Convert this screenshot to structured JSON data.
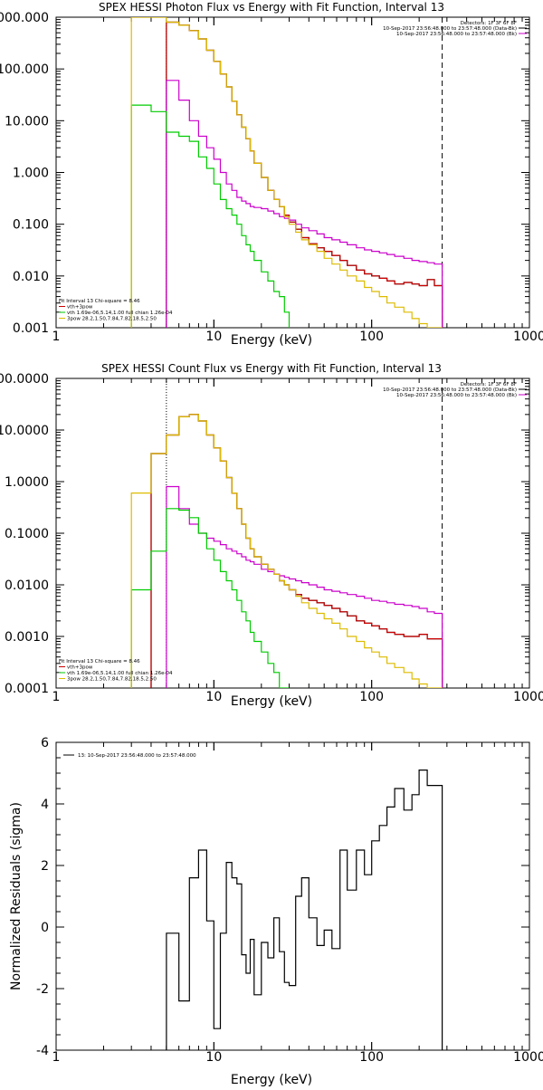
{
  "chart_data": [
    {
      "type": "line",
      "title": "SPEX HESSI Photon Flux vs Energy with Fit Function, Interval 13",
      "xlabel": "Energy (keV)",
      "ylabel": "",
      "xscale": "log",
      "yscale": "log",
      "xlim": [
        1,
        1000
      ],
      "ylim": [
        0.001,
        1000
      ],
      "x_ticks": [
        "1",
        "10",
        "100",
        "1000"
      ],
      "y_ticks": [
        "0.001",
        "0.010",
        "0.100",
        "1.000",
        "10.000",
        "100.000",
        "1000.000"
      ],
      "legend_top_right": [
        {
          "text": "Detectors: 1F 3F 6F 8F",
          "color": "#000000"
        },
        {
          "text": "10-Sep-2017 23:56:48.000 to 23:57:48.000 (Data-Bk)",
          "color": "#000000"
        },
        {
          "text": "10-Sep-2017 23:56:48.000 to 23:57:48.000 (Bk)",
          "color": "#cc00cc"
        }
      ],
      "legend_bottom_left": [
        {
          "text": "Fit Interval 13   Chi-square = 8.46",
          "color": "#000000"
        },
        {
          "text": "vth+3pow",
          "color": "#cc0000"
        },
        {
          "text": "vth 1.69e-06,5.14,1.00   full chian 1.26e-04",
          "color": "#00cc00"
        },
        {
          "text": "3pow 28.2,1.50,7.84,7.82,18.5,2.50",
          "color": "#ddbb00"
        }
      ],
      "vlines": [
        {
          "x": 5,
          "style": "dotted"
        },
        {
          "x": 280,
          "style": "dashed"
        }
      ],
      "series": [
        {
          "name": "10-Sep-2017 23:56:48.000 to 23:57:48.000 (Data-Bk)",
          "color": "#000000",
          "x": [
            5,
            6,
            7,
            8,
            9,
            10,
            11,
            12,
            13,
            14,
            15,
            16,
            17,
            18,
            20,
            22,
            24,
            26,
            28,
            30,
            33,
            36,
            40,
            45,
            50,
            56,
            63,
            70,
            80,
            90,
            100,
            112,
            125,
            140,
            160,
            180,
            200,
            225,
            250,
            280
          ],
          "y": [
            800,
            700,
            550,
            380,
            230,
            140,
            80,
            45,
            24,
            13,
            7.5,
            4.5,
            2.6,
            1.5,
            0.8,
            0.45,
            0.3,
            0.22,
            0.15,
            0.11,
            0.08,
            0.055,
            0.042,
            0.035,
            0.03,
            0.025,
            0.02,
            0.016,
            0.013,
            0.011,
            0.01,
            0.009,
            0.008,
            0.007,
            0.0075,
            0.007,
            0.0065,
            0.0085,
            0.0065,
            0.005
          ]
        },
        {
          "name": "vth+3pow",
          "color": "#cc0000",
          "x": [
            5,
            6,
            7,
            8,
            9,
            10,
            11,
            12,
            13,
            14,
            15,
            16,
            17,
            18,
            20,
            22,
            24,
            26,
            28,
            30,
            33,
            36,
            40,
            45,
            50,
            56,
            63,
            70,
            80,
            90,
            100,
            112,
            125,
            140,
            160,
            180,
            200,
            225,
            250,
            280
          ],
          "y": [
            800,
            700,
            550,
            380,
            230,
            140,
            80,
            45,
            24,
            13,
            7.5,
            4.5,
            2.6,
            1.5,
            0.8,
            0.45,
            0.3,
            0.22,
            0.15,
            0.11,
            0.08,
            0.055,
            0.042,
            0.035,
            0.03,
            0.025,
            0.02,
            0.016,
            0.013,
            0.011,
            0.01,
            0.009,
            0.008,
            0.007,
            0.0075,
            0.007,
            0.0065,
            0.0085,
            0.0065,
            0.005
          ]
        },
        {
          "name": "10-Sep-2017 23:56:48.000 to 23:57:48.000 (Bk)",
          "color": "#cc00cc",
          "x": [
            5,
            6,
            7,
            8,
            9,
            10,
            11,
            12,
            13,
            14,
            15,
            16,
            17,
            18,
            20,
            22,
            24,
            26,
            28,
            30,
            33,
            36,
            40,
            45,
            50,
            56,
            63,
            70,
            80,
            90,
            100,
            112,
            125,
            140,
            160,
            180,
            200,
            225,
            250,
            280
          ],
          "y": [
            60,
            25,
            10,
            5,
            3,
            1.8,
            1,
            0.6,
            0.45,
            0.33,
            0.28,
            0.25,
            0.22,
            0.21,
            0.2,
            0.18,
            0.16,
            0.14,
            0.13,
            0.12,
            0.1,
            0.085,
            0.075,
            0.065,
            0.055,
            0.05,
            0.045,
            0.04,
            0.035,
            0.032,
            0.03,
            0.028,
            0.026,
            0.024,
            0.022,
            0.02,
            0.019,
            0.018,
            0.017,
            0.015
          ]
        },
        {
          "name": "vth 1.69e-06,5.14,1.00   full chian 1.26e-04",
          "color": "#00cc00",
          "x": [
            3,
            4,
            5,
            6,
            7,
            8,
            9,
            10,
            11,
            12,
            13,
            14,
            15,
            16,
            17,
            18,
            20,
            22,
            24,
            26,
            28,
            30
          ],
          "y": [
            20,
            15,
            6,
            5,
            4,
            2,
            1.2,
            0.6,
            0.3,
            0.2,
            0.15,
            0.1,
            0.06,
            0.04,
            0.03,
            0.02,
            0.012,
            0.008,
            0.005,
            0.004,
            0.002,
            0.001
          ]
        },
        {
          "name": "3pow 28.2,1.50,7.84,7.82,18.5,2.50",
          "color": "#ddbb00",
          "x": [
            3,
            5,
            6,
            7,
            8,
            9,
            10,
            11,
            12,
            13,
            14,
            15,
            16,
            17,
            18,
            20,
            22,
            24,
            26,
            28,
            30,
            33,
            36,
            40,
            45,
            50,
            56,
            63,
            70,
            80,
            90,
            100,
            112,
            125,
            140,
            160,
            180,
            200,
            225,
            250,
            280
          ],
          "y": [
            1000,
            800,
            700,
            550,
            380,
            230,
            140,
            80,
            45,
            24,
            13,
            7.5,
            4.5,
            2.6,
            1.5,
            0.8,
            0.45,
            0.3,
            0.22,
            0.14,
            0.1,
            0.07,
            0.05,
            0.04,
            0.03,
            0.022,
            0.017,
            0.013,
            0.01,
            0.008,
            0.006,
            0.005,
            0.004,
            0.003,
            0.0025,
            0.002,
            0.0015,
            0.0012,
            0.001,
            0.001,
            0.001
          ]
        }
      ]
    },
    {
      "type": "line",
      "title": "SPEX HESSI Count Flux vs Energy with Fit Function, Interval 13",
      "xlabel": "Energy (keV)",
      "ylabel": "",
      "xscale": "log",
      "yscale": "log",
      "xlim": [
        1,
        1000
      ],
      "ylim": [
        0.0001,
        100
      ],
      "x_ticks": [
        "1",
        "10",
        "100",
        "1000"
      ],
      "y_ticks": [
        "0.0001",
        "0.0010",
        "0.0100",
        "0.1000",
        "1.0000",
        "10.0000",
        "100.0000"
      ],
      "legend_top_right": [
        {
          "text": "Detectors: 1F 3F 6F 8F",
          "color": "#000000"
        },
        {
          "text": "10-Sep-2017 23:56:48.000 to 23:57:48.000 (Data-Bk)",
          "color": "#000000"
        },
        {
          "text": "10-Sep-2017 23:56:48.000 to 23:57:48.000 (Bk)",
          "color": "#cc00cc"
        }
      ],
      "legend_bottom_left": [
        {
          "text": "Fit Interval 13   Chi-square = 8.46",
          "color": "#000000"
        },
        {
          "text": "vth+3pow",
          "color": "#cc0000"
        },
        {
          "text": "vth 1.69e-06,5.14,1.00   full chian 1.26e-04",
          "color": "#00cc00"
        },
        {
          "text": "3pow 28.2,1.50,7.84,7.82,18.5,2.50",
          "color": "#ddbb00"
        }
      ],
      "vlines": [
        {
          "x": 5,
          "style": "dotted"
        },
        {
          "x": 280,
          "style": "dashed"
        }
      ],
      "series": [
        {
          "name": "10-Sep-2017 23:56:48.000 to 23:57:48.000 (Data-Bk)",
          "color": "#000000",
          "x": [
            4,
            5,
            6,
            7,
            8,
            9,
            10,
            11,
            12,
            13,
            14,
            15,
            16,
            17,
            18,
            20,
            22,
            24,
            26,
            28,
            30,
            33,
            36,
            40,
            45,
            50,
            56,
            63,
            70,
            80,
            90,
            100,
            112,
            125,
            140,
            160,
            180,
            200,
            225,
            250,
            280
          ],
          "y": [
            3.5,
            8,
            18,
            20,
            15,
            8,
            4.5,
            2.5,
            1.2,
            0.6,
            0.3,
            0.15,
            0.08,
            0.05,
            0.035,
            0.025,
            0.02,
            0.016,
            0.012,
            0.01,
            0.008,
            0.0065,
            0.0055,
            0.005,
            0.0045,
            0.004,
            0.0035,
            0.003,
            0.0025,
            0.002,
            0.0018,
            0.0016,
            0.0014,
            0.0012,
            0.0011,
            0.001,
            0.001,
            0.0011,
            0.0009,
            0.0009,
            0.0007
          ]
        },
        {
          "name": "vth+3pow",
          "color": "#cc0000",
          "x": [
            4,
            5,
            6,
            7,
            8,
            9,
            10,
            11,
            12,
            13,
            14,
            15,
            16,
            17,
            18,
            20,
            22,
            24,
            26,
            28,
            30,
            33,
            36,
            40,
            45,
            50,
            56,
            63,
            70,
            80,
            90,
            100,
            112,
            125,
            140,
            160,
            180,
            200,
            225,
            250,
            280
          ],
          "y": [
            3.5,
            8,
            18,
            20,
            15,
            8,
            4.5,
            2.5,
            1.2,
            0.6,
            0.3,
            0.15,
            0.08,
            0.05,
            0.035,
            0.025,
            0.02,
            0.016,
            0.012,
            0.01,
            0.008,
            0.0065,
            0.0055,
            0.005,
            0.0045,
            0.004,
            0.0035,
            0.003,
            0.0025,
            0.002,
            0.0018,
            0.0016,
            0.0014,
            0.0012,
            0.0011,
            0.001,
            0.001,
            0.0011,
            0.0009,
            0.0009,
            0.0007
          ]
        },
        {
          "name": "10-Sep-2017 23:56:48.000 to 23:57:48.000 (Bk)",
          "color": "#cc00cc",
          "x": [
            5,
            6,
            7,
            8,
            9,
            10,
            11,
            12,
            13,
            14,
            15,
            16,
            17,
            18,
            20,
            22,
            24,
            26,
            28,
            30,
            33,
            36,
            40,
            45,
            50,
            56,
            63,
            70,
            80,
            90,
            100,
            112,
            125,
            140,
            160,
            180,
            200,
            225,
            250,
            280
          ],
          "y": [
            0.8,
            0.3,
            0.15,
            0.1,
            0.08,
            0.07,
            0.06,
            0.05,
            0.045,
            0.04,
            0.035,
            0.03,
            0.028,
            0.025,
            0.02,
            0.018,
            0.016,
            0.015,
            0.014,
            0.013,
            0.012,
            0.011,
            0.01,
            0.009,
            0.008,
            0.0075,
            0.007,
            0.0065,
            0.006,
            0.0055,
            0.005,
            0.0048,
            0.0045,
            0.0042,
            0.004,
            0.0038,
            0.0035,
            0.003,
            0.0028,
            0.0022
          ]
        },
        {
          "name": "vth 1.69e-06,5.14,1.00   full chian 1.26e-04",
          "color": "#00cc00",
          "x": [
            3,
            4,
            5,
            6,
            7,
            8,
            9,
            10,
            11,
            12,
            13,
            14,
            15,
            16,
            17,
            18,
            20,
            22,
            24,
            26,
            28,
            30
          ],
          "y": [
            0.008,
            0.045,
            0.3,
            0.28,
            0.2,
            0.1,
            0.05,
            0.03,
            0.018,
            0.012,
            0.008,
            0.005,
            0.003,
            0.002,
            0.0012,
            0.0008,
            0.0005,
            0.0003,
            0.0002,
            0.0001,
            0.0001,
            0.0001
          ]
        },
        {
          "name": "3pow 28.2,1.50,7.84,7.82,18.5,2.50",
          "color": "#ddbb00",
          "x": [
            3,
            4,
            5,
            6,
            7,
            8,
            9,
            10,
            11,
            12,
            13,
            14,
            15,
            16,
            17,
            18,
            20,
            22,
            24,
            26,
            28,
            30,
            33,
            36,
            40,
            45,
            50,
            56,
            63,
            70,
            80,
            90,
            100,
            112,
            125,
            140,
            160,
            180,
            200,
            225,
            250,
            280
          ],
          "y": [
            0.6,
            3.5,
            8,
            18,
            20,
            15,
            8,
            4.5,
            2.5,
            1.2,
            0.6,
            0.3,
            0.15,
            0.08,
            0.05,
            0.035,
            0.025,
            0.02,
            0.016,
            0.012,
            0.01,
            0.008,
            0.006,
            0.0045,
            0.0035,
            0.0028,
            0.0022,
            0.0018,
            0.0014,
            0.001,
            0.0008,
            0.0006,
            0.0005,
            0.0004,
            0.0003,
            0.00025,
            0.0002,
            0.00015,
            0.00012,
            0.0001,
            0.0001,
            0.0001
          ]
        }
      ]
    },
    {
      "type": "line",
      "title": "",
      "xlabel": "Energy (keV)",
      "ylabel": "Normalized Residuals (sigma)",
      "xscale": "log",
      "yscale": "linear",
      "xlim": [
        1,
        1000
      ],
      "ylim": [
        -4,
        6
      ],
      "x_ticks": [
        "1",
        "10",
        "100",
        "1000"
      ],
      "y_ticks": [
        "-4",
        "-2",
        "0",
        "2",
        "4",
        "6"
      ],
      "legend_top_left": [
        {
          "text": "13: 10-Sep-2017 23:56:48.000 to 23:57:48.000",
          "color": "#000000"
        }
      ],
      "series": [
        {
          "name": "13: 10-Sep-2017 23:56:48.000 to 23:57:48.000",
          "color": "#000000",
          "x": [
            5,
            6,
            7,
            8,
            9,
            10,
            11,
            12,
            13,
            14,
            15,
            16,
            17,
            18,
            20,
            22,
            24,
            26,
            28,
            30,
            33,
            36,
            40,
            45,
            50,
            56,
            63,
            70,
            80,
            90,
            100,
            112,
            125,
            140,
            160,
            180,
            200,
            225,
            250,
            280
          ],
          "y": [
            -0.2,
            -2.4,
            1.6,
            2.5,
            0.2,
            -3.3,
            -0.2,
            2.1,
            1.6,
            1.4,
            -0.9,
            -1.5,
            -0.4,
            -2.2,
            -0.5,
            -1.0,
            0.3,
            -0.8,
            -1.8,
            -1.9,
            1.0,
            1.6,
            0.3,
            -0.6,
            -0.1,
            -0.7,
            2.5,
            1.2,
            2.5,
            1.7,
            2.8,
            3.3,
            3.9,
            4.5,
            3.8,
            4.3,
            5.1,
            4.6,
            4.6,
            4.6
          ]
        }
      ]
    }
  ]
}
